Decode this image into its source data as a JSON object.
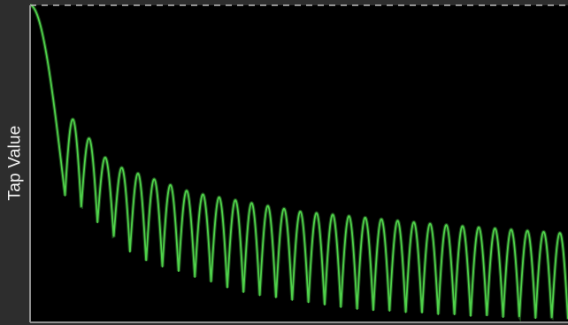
{
  "chart_data": {
    "type": "line",
    "title": "",
    "xlabel": "",
    "ylabel": "Tap Value",
    "x_range": [
      0,
      1
    ],
    "ylim": [
      0,
      1
    ],
    "grid": false,
    "legend": "none",
    "line_color": "#4fd14a",
    "plot_background": "#000000",
    "frame_color": "#8f8f8f",
    "top_border_style": "dashed",
    "series": [
      {
        "name": "",
        "shape": "decaying sidelobes (|sinc|-like magnitude response)",
        "main_lobe_end_x": 0.065,
        "sidelobe_count": 31,
        "envelope_points": [
          {
            "x": 0.0,
            "y": 1.0
          },
          {
            "x": 0.07,
            "y": 0.66
          },
          {
            "x": 0.15,
            "y": 0.5
          },
          {
            "x": 0.3,
            "y": 0.41
          },
          {
            "x": 0.5,
            "y": 0.35
          },
          {
            "x": 0.75,
            "y": 0.31
          },
          {
            "x": 1.0,
            "y": 0.28
          }
        ],
        "null_floor_points": [
          {
            "x": 0.07,
            "y": 0.4
          },
          {
            "x": 0.2,
            "y": 0.2
          },
          {
            "x": 0.4,
            "y": 0.09
          },
          {
            "x": 0.6,
            "y": 0.04
          },
          {
            "x": 0.8,
            "y": 0.02
          },
          {
            "x": 1.0,
            "y": 0.01
          }
        ]
      }
    ]
  }
}
